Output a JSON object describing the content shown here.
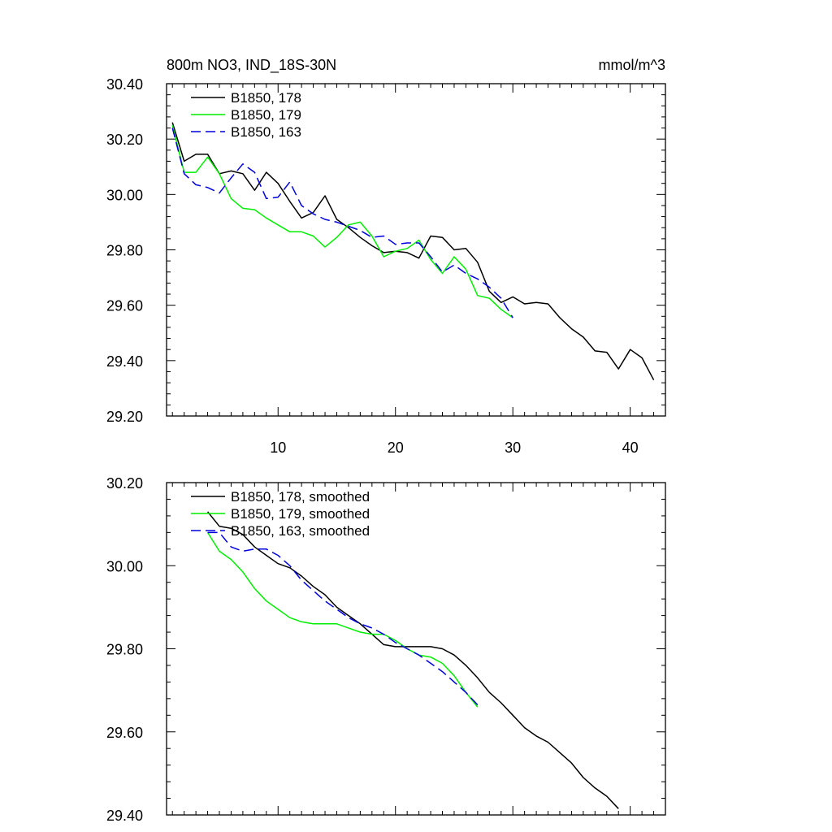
{
  "figure": {
    "title": "800m NO3, IND_18S-30N",
    "units": "mmol/m^3"
  },
  "chart_data": [
    {
      "type": "line",
      "title": "800m NO3, IND_18S-30N",
      "units": "mmol/m^3",
      "xlim": [
        0.5,
        43
      ],
      "ylim": [
        29.2,
        30.4
      ],
      "xticks": [
        10,
        20,
        30,
        40
      ],
      "xtick_labels": [
        "10",
        "20",
        "30",
        "40"
      ],
      "yticks": [
        29.2,
        29.4,
        29.6,
        29.8,
        30.0,
        30.2,
        30.4
      ],
      "ytick_labels": [
        "29.20",
        "29.40",
        "29.60",
        "29.80",
        "30.00",
        "30.20",
        "30.40"
      ],
      "grid": false,
      "legend_position": "top-left",
      "series": [
        {
          "name": "B1850, 178",
          "color": "#000000",
          "dash": "solid",
          "x": [
            1,
            2,
            3,
            4,
            5,
            6,
            7,
            8,
            9,
            10,
            11,
            12,
            13,
            14,
            15,
            16,
            17,
            18,
            19,
            20,
            21,
            22,
            23,
            24,
            25,
            26,
            27,
            28,
            29,
            30,
            31,
            32,
            33,
            34,
            35,
            36,
            37,
            38,
            39,
            40,
            41,
            42
          ],
          "y": [
            30.26,
            30.12,
            30.145,
            30.145,
            30.075,
            30.085,
            30.075,
            30.015,
            30.08,
            30.04,
            29.975,
            29.915,
            29.935,
            29.995,
            29.91,
            29.88,
            29.845,
            29.815,
            29.79,
            29.795,
            29.79,
            29.77,
            29.85,
            29.845,
            29.8,
            29.805,
            29.755,
            29.65,
            29.61,
            29.63,
            29.605,
            29.61,
            29.605,
            29.555,
            29.515,
            29.485,
            29.435,
            29.43,
            29.37,
            29.44,
            29.41,
            29.33
          ]
        },
        {
          "name": "B1850, 179",
          "color": "#00ee00",
          "dash": "solid",
          "x": [
            1,
            2,
            3,
            4,
            5,
            6,
            7,
            8,
            9,
            10,
            11,
            12,
            13,
            14,
            15,
            16,
            17,
            18,
            19,
            20,
            21,
            22,
            23,
            24,
            25,
            26,
            27,
            28,
            29,
            30
          ],
          "y": [
            30.25,
            30.08,
            30.08,
            30.135,
            30.075,
            29.985,
            29.95,
            29.945,
            29.915,
            29.89,
            29.865,
            29.865,
            29.85,
            29.81,
            29.845,
            29.89,
            29.9,
            29.85,
            29.775,
            29.795,
            29.805,
            29.835,
            29.765,
            29.715,
            29.775,
            29.73,
            29.635,
            29.625,
            29.585,
            29.555
          ]
        },
        {
          "name": "B1850, 163",
          "color": "#0000dd",
          "dash": "dashed",
          "x": [
            1,
            2,
            3,
            4,
            5,
            6,
            7,
            8,
            9,
            10,
            11,
            12,
            13,
            14,
            15,
            16,
            17,
            18,
            19,
            20,
            21,
            22,
            23,
            24,
            25,
            26,
            27,
            28,
            29,
            30
          ],
          "y": [
            30.24,
            30.075,
            30.035,
            30.025,
            30.005,
            30.06,
            30.11,
            30.08,
            29.985,
            29.99,
            30.045,
            29.96,
            29.93,
            29.91,
            29.9,
            29.885,
            29.87,
            29.845,
            29.85,
            29.82,
            29.825,
            29.825,
            29.775,
            29.72,
            29.745,
            29.715,
            29.695,
            29.665,
            29.625,
            29.555
          ]
        }
      ]
    },
    {
      "type": "line",
      "xlim": [
        0.5,
        43
      ],
      "ylim": [
        29.4,
        30.2
      ],
      "xticks": [
        10,
        20,
        30,
        40
      ],
      "xtick_labels": [],
      "yticks": [
        29.4,
        29.6,
        29.8,
        30.0,
        30.2
      ],
      "ytick_labels": [
        "29.40",
        "29.60",
        "29.80",
        "30.00",
        "30.20"
      ],
      "grid": false,
      "legend_position": "top-left",
      "series": [
        {
          "name": "B1850, 178, smoothed",
          "color": "#000000",
          "dash": "solid",
          "x": [
            4,
            5,
            6,
            7,
            8,
            9,
            10,
            11,
            12,
            13,
            14,
            15,
            16,
            17,
            18,
            19,
            20,
            21,
            22,
            23,
            24,
            25,
            26,
            27,
            28,
            29,
            30,
            31,
            32,
            33,
            34,
            35,
            36,
            37,
            38,
            39
          ],
          "y": [
            30.13,
            30.095,
            30.09,
            30.075,
            30.045,
            30.025,
            30.005,
            29.995,
            29.975,
            29.95,
            29.93,
            29.9,
            29.88,
            29.86,
            29.835,
            29.81,
            29.805,
            29.805,
            29.805,
            29.805,
            29.8,
            29.785,
            29.76,
            29.73,
            29.695,
            29.67,
            29.64,
            29.61,
            29.59,
            29.575,
            29.55,
            29.525,
            29.49,
            29.465,
            29.445,
            29.415
          ]
        },
        {
          "name": "B1850, 179, smoothed",
          "color": "#00ee00",
          "dash": "solid",
          "x": [
            4,
            5,
            6,
            7,
            8,
            9,
            10,
            11,
            12,
            13,
            14,
            15,
            16,
            17,
            18,
            19,
            20,
            21,
            22,
            23,
            24,
            25,
            26,
            27
          ],
          "y": [
            30.08,
            30.035,
            30.015,
            29.985,
            29.945,
            29.915,
            29.895,
            29.875,
            29.865,
            29.86,
            29.86,
            29.86,
            29.85,
            29.84,
            29.835,
            29.835,
            29.82,
            29.8,
            29.785,
            29.78,
            29.765,
            29.735,
            29.695,
            29.66
          ]
        },
        {
          "name": "B1850, 163, smoothed",
          "color": "#0000dd",
          "dash": "dashed",
          "x": [
            4,
            5,
            6,
            7,
            8,
            9,
            10,
            11,
            12,
            13,
            14,
            15,
            16,
            17,
            18,
            19,
            20,
            21,
            22,
            23,
            24,
            25,
            26,
            27
          ],
          "y": [
            30.08,
            30.08,
            30.045,
            30.035,
            30.04,
            30.04,
            30.025,
            30.0,
            29.965,
            29.94,
            29.915,
            29.895,
            29.875,
            29.86,
            29.85,
            29.835,
            29.815,
            29.8,
            29.785,
            29.765,
            29.745,
            29.72,
            29.695,
            29.665
          ]
        }
      ]
    }
  ]
}
